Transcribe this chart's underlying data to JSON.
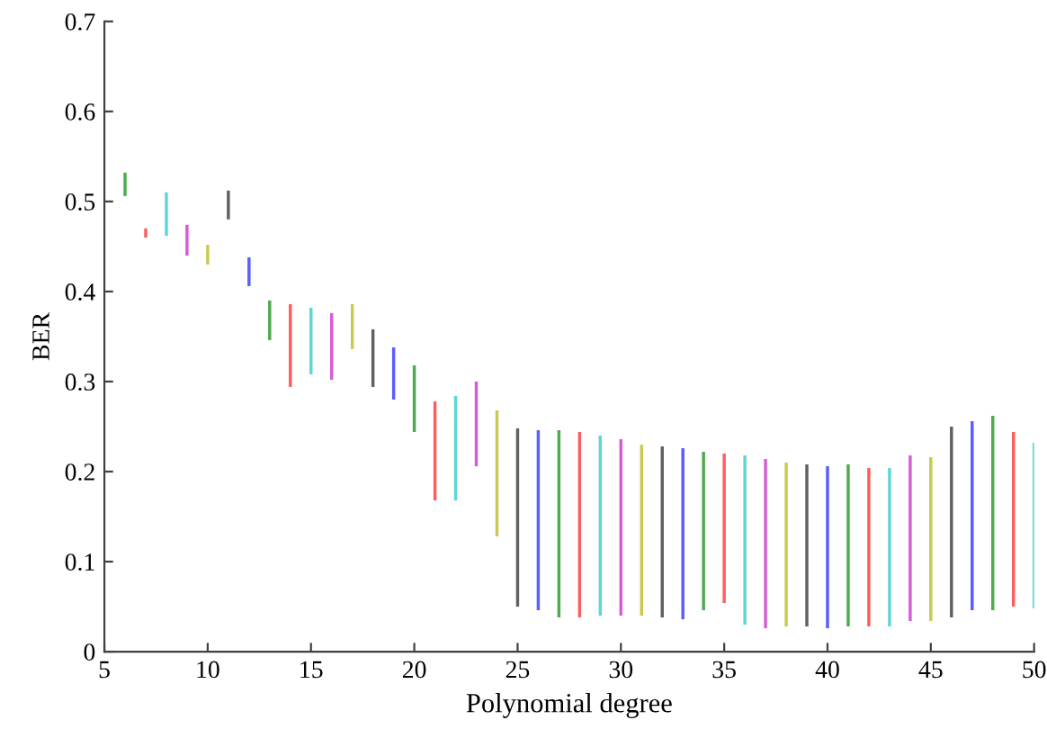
{
  "chart_data": {
    "type": "bar",
    "xlabel": "Polynomial degree",
    "ylabel": "BER",
    "x": [
      6,
      7,
      8,
      9,
      10,
      11,
      12,
      13,
      14,
      15,
      16,
      17,
      18,
      19,
      20,
      21,
      22,
      23,
      24,
      25,
      26,
      27,
      28,
      29,
      30,
      31,
      32,
      33,
      34,
      35,
      36,
      37,
      38,
      39,
      40,
      41,
      42,
      43,
      44,
      45,
      46,
      47,
      48,
      49,
      50
    ],
    "base": [
      0.506,
      0.46,
      0.462,
      0.44,
      0.43,
      0.48,
      0.406,
      0.346,
      0.294,
      0.308,
      0.302,
      0.336,
      0.294,
      0.28,
      0.244,
      0.168,
      0.168,
      0.206,
      0.128,
      0.05,
      0.046,
      0.038,
      0.038,
      0.04,
      0.04,
      0.04,
      0.038,
      0.036,
      0.046,
      0.054,
      0.03,
      0.026,
      0.028,
      0.028,
      0.026,
      0.028,
      0.028,
      0.028,
      0.034,
      0.034,
      0.038,
      0.046,
      0.046,
      0.05,
      0.048
    ],
    "values": [
      0.026,
      0.01,
      0.048,
      0.034,
      0.022,
      0.032,
      0.032,
      0.044,
      0.092,
      0.074,
      0.074,
      0.05,
      0.064,
      0.058,
      0.074,
      0.11,
      0.116,
      0.094,
      0.14,
      0.198,
      0.2,
      0.208,
      0.206,
      0.2,
      0.196,
      0.19,
      0.19,
      0.19,
      0.176,
      0.166,
      0.188,
      0.188,
      0.182,
      0.18,
      0.18,
      0.18,
      0.176,
      0.176,
      0.184,
      0.182,
      0.212,
      0.21,
      0.216,
      0.194,
      0.184
    ],
    "colors": [
      "#4daa4d",
      "#ff5c5c",
      "#5cd6d6",
      "#d65cd6",
      "#caca50",
      "#606060",
      "#5c5cff",
      "#4daa4d",
      "#ff5c5c",
      "#5cd6d6",
      "#d65cd6",
      "#caca50",
      "#606060",
      "#5c5cff",
      "#4daa4d",
      "#ff5c5c",
      "#5cd6d6",
      "#d65cd6",
      "#caca50",
      "#606060",
      "#5c5cff",
      "#4daa4d",
      "#ff5c5c",
      "#5cd6d6",
      "#d65cd6",
      "#caca50",
      "#606060",
      "#5c5cff",
      "#4daa4d",
      "#ff5c5c",
      "#5cd6d6",
      "#d65cd6",
      "#caca50",
      "#606060",
      "#5c5cff",
      "#4daa4d",
      "#ff5c5c",
      "#5cd6d6",
      "#d65cd6",
      "#caca50",
      "#606060",
      "#5c5cff",
      "#4daa4d",
      "#ff5c5c",
      "#5cd6d6"
    ],
    "xlim": [
      5,
      50
    ],
    "ylim": [
      0,
      0.7
    ],
    "xticks": [
      5,
      10,
      15,
      20,
      25,
      30,
      35,
      40,
      45,
      50
    ],
    "yticks": [
      0,
      0.1,
      0.2,
      0.3,
      0.4,
      0.5,
      0.6,
      0.7
    ],
    "grid": false,
    "legend": false
  }
}
